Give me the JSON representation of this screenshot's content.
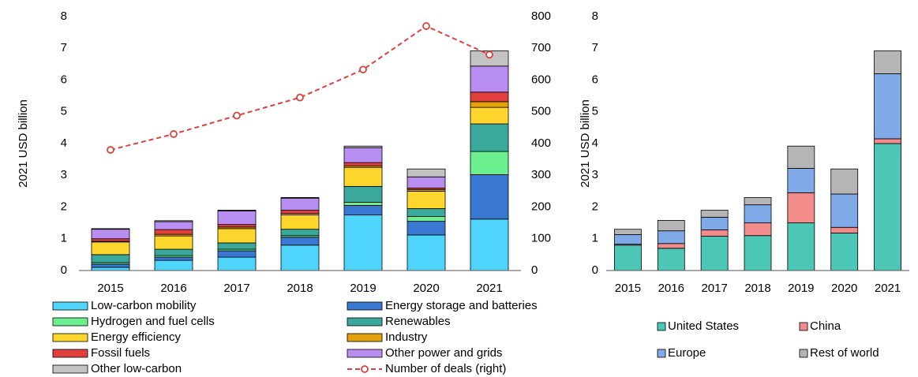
{
  "chart_data": [
    {
      "type": "bar",
      "stacked": true,
      "ylabel": "2021 USD billion",
      "categories": [
        "2015",
        "2016",
        "2017",
        "2018",
        "2019",
        "2020",
        "2021"
      ],
      "ylim": [
        0,
        8
      ],
      "yticks": [
        0,
        1,
        2,
        3,
        4,
        5,
        6,
        7,
        8
      ],
      "y2lim": [
        0,
        800
      ],
      "y2ticks": [
        0,
        100,
        200,
        300,
        400,
        500,
        600,
        700,
        800
      ],
      "series": [
        {
          "name": "Low-carbon mobility",
          "color": "#4fd4fb",
          "values": [
            0.1,
            0.32,
            0.42,
            0.8,
            1.75,
            1.12,
            1.62
          ]
        },
        {
          "name": "Energy storage and batteries",
          "color": "#3b78d2",
          "values": [
            0.1,
            0.1,
            0.2,
            0.25,
            0.3,
            0.43,
            1.4
          ]
        },
        {
          "name": "Hydrogen and fuel cells",
          "color": "#6cef8f",
          "values": [
            0.05,
            0.05,
            0.05,
            0.05,
            0.1,
            0.15,
            0.73
          ]
        },
        {
          "name": "Renewables",
          "color": "#3aa99c",
          "values": [
            0.25,
            0.2,
            0.2,
            0.2,
            0.5,
            0.25,
            0.87
          ]
        },
        {
          "name": "Energy efficiency",
          "color": "#fdd52c",
          "values": [
            0.4,
            0.42,
            0.45,
            0.45,
            0.6,
            0.55,
            0.52
          ]
        },
        {
          "name": "Industry",
          "color": "#e3a20b",
          "values": [
            0.02,
            0.05,
            0.05,
            0.05,
            0.05,
            0.05,
            0.18
          ]
        },
        {
          "name": "Fossil fuels",
          "color": "#e2403f",
          "values": [
            0.08,
            0.15,
            0.08,
            0.1,
            0.1,
            0.05,
            0.3
          ]
        },
        {
          "name": "Other power and grids",
          "color": "#b88ef0",
          "values": [
            0.3,
            0.25,
            0.43,
            0.38,
            0.47,
            0.35,
            0.82
          ]
        },
        {
          "name": "Other low-carbon",
          "color": "#c3c3c3",
          "values": [
            0.02,
            0.03,
            0.02,
            0.02,
            0.05,
            0.25,
            0.48
          ]
        },
        {
          "name": "Number of deals (right)",
          "color": "#e0403c",
          "type": "line",
          "axis": "y2",
          "values": [
            380,
            430,
            488,
            545,
            633,
            770,
            680
          ]
        }
      ]
    },
    {
      "type": "bar",
      "stacked": true,
      "ylabel": "2021 USD billion",
      "categories": [
        "2015",
        "2016",
        "2017",
        "2018",
        "2019",
        "2020",
        "2021"
      ],
      "ylim": [
        0,
        8
      ],
      "yticks": [
        0,
        1,
        2,
        3,
        4,
        5,
        6,
        7,
        8
      ],
      "series": [
        {
          "name": "United States",
          "color": "#4cc7b6",
          "values": [
            0.8,
            0.7,
            1.08,
            1.1,
            1.5,
            1.18,
            4.0
          ]
        },
        {
          "name": "China",
          "color": "#f18c8a",
          "values": [
            0.03,
            0.15,
            0.2,
            0.4,
            0.95,
            0.18,
            0.15
          ]
        },
        {
          "name": "Europe",
          "color": "#80a9e8",
          "values": [
            0.3,
            0.4,
            0.4,
            0.57,
            0.77,
            1.05,
            2.05
          ]
        },
        {
          "name": "Rest of world",
          "color": "#b5b5b5",
          "values": [
            0.17,
            0.33,
            0.22,
            0.23,
            0.7,
            0.79,
            0.72
          ]
        }
      ]
    }
  ]
}
